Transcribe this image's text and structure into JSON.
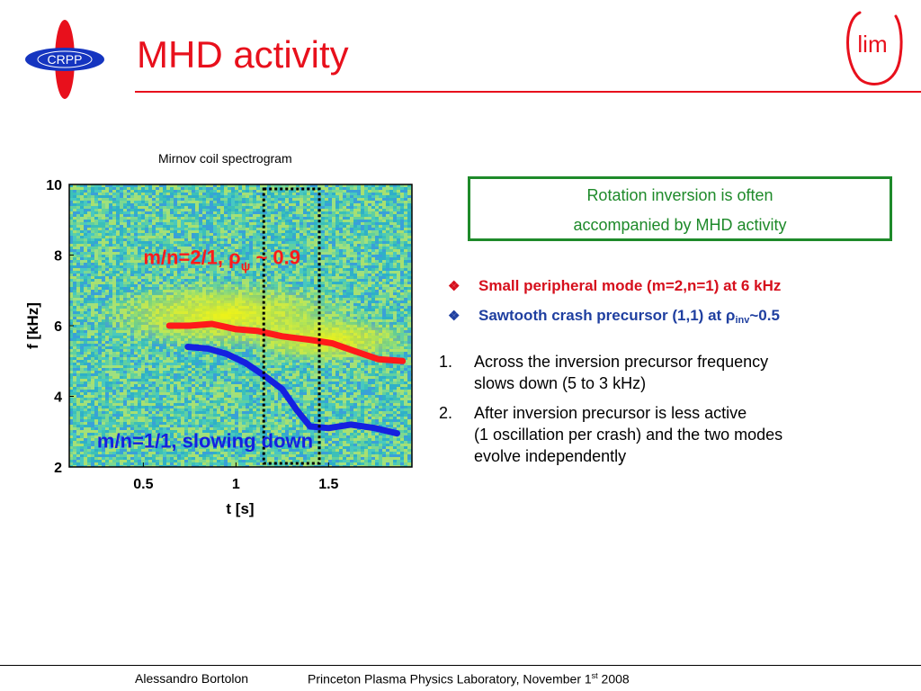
{
  "slide": {
    "title": "MHD activity",
    "caption": "Mirnov coil spectrogram",
    "logo_left_text": "CRPP",
    "logo_right_text": "lim"
  },
  "callout": {
    "line1": "Rotation inversion is often",
    "line2": "accompanied by MHD activity"
  },
  "bullets": [
    {
      "marker": "❖",
      "text": "Small peripheral mode (m=2,n=1) at 6 kHz",
      "color": "#d60f1c"
    },
    {
      "marker": "❖",
      "text_before": "Sawtooth crash precursor (1,1) at ",
      "rho": "ρ",
      "sub": "inv",
      "text_after": "~0.5",
      "color": "#1f3fa0"
    }
  ],
  "numbered": [
    {
      "num": "1.",
      "line1": "Across the inversion precursor frequency",
      "line2": "slows down (5 to 3 kHz)"
    },
    {
      "num": "2.",
      "line1": "After inversion precursor is less active",
      "line2": "(1 oscillation per crash) and the two modes",
      "line3": "evolve independently"
    }
  ],
  "footer": {
    "author": "Alessandro Bortolon",
    "venue_before": "Princeton Plasma Physics Laboratory, November 1",
    "venue_sup": "st",
    "venue_after": " 2008"
  },
  "colors": {
    "title_red": "#e8101c",
    "callout_green": "#1e8a2a",
    "mode21_red": "#ff1a1a",
    "mode11_blue": "#1520e0"
  },
  "chart_data": {
    "type": "line",
    "background": "spectrogram",
    "xlabel": "t [s]",
    "ylabel": "f [kHz]",
    "xlim": [
      0.1,
      1.95
    ],
    "ylim": [
      2,
      10
    ],
    "xticks": [
      0.5,
      1,
      1.5
    ],
    "xtick_labels": [
      "0.5",
      "1",
      "1.5"
    ],
    "yticks": [
      2,
      4,
      6,
      8,
      10
    ],
    "ytick_labels": [
      "2",
      "4",
      "6",
      "8",
      "10"
    ],
    "highlight_window": [
      1.15,
      1.45
    ],
    "series": [
      {
        "name": "m/n=2/1, ρψ ~ 0.9",
        "label_parts": {
          "before": "m/n=2/1, ",
          "rho": "ρ",
          "sub": "ψ",
          "after": " ~ 0.9"
        },
        "color": "#ff1a1a",
        "x": [
          0.64,
          0.75,
          0.87,
          1.0,
          1.12,
          1.25,
          1.4,
          1.52,
          1.63,
          1.77,
          1.9
        ],
        "y": [
          6.0,
          6.0,
          6.05,
          5.9,
          5.85,
          5.7,
          5.6,
          5.5,
          5.3,
          5.05,
          5.0
        ]
      },
      {
        "name": "m/n=1/1, slowing down",
        "label_parts": {
          "before": "m/n=1/1, slowing down",
          "rho": "",
          "sub": "",
          "after": ""
        },
        "color": "#1520e0",
        "x": [
          0.74,
          0.85,
          0.95,
          1.05,
          1.15,
          1.25,
          1.33,
          1.4,
          1.5,
          1.62,
          1.75,
          1.87
        ],
        "y": [
          5.4,
          5.35,
          5.2,
          4.95,
          4.6,
          4.2,
          3.6,
          3.15,
          3.1,
          3.2,
          3.1,
          2.95
        ]
      }
    ]
  }
}
